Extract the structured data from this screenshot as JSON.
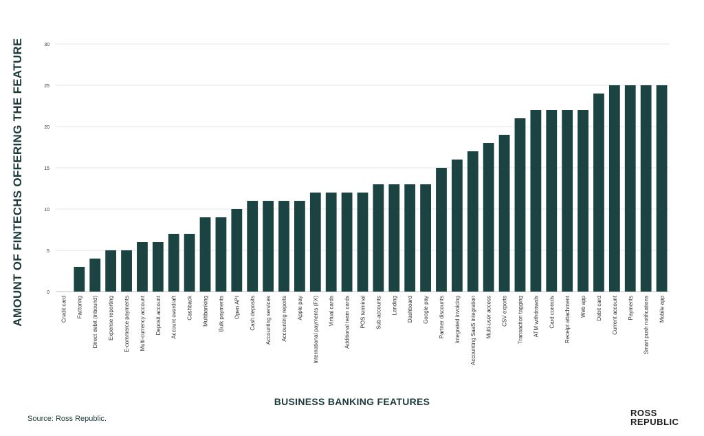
{
  "chart_data": {
    "type": "bar",
    "xlabel": "BUSINESS BANKING FEATURES",
    "ylabel": "AMOUNT OF FINTECHS OFFERING THE FEATURE",
    "ylim": [
      0,
      30
    ],
    "yticks": [
      0,
      5,
      10,
      15,
      20,
      25,
      30
    ],
    "grid": true,
    "bar_color": "#1b4341",
    "categories": [
      "Credit card",
      "Factoring",
      "Direct debit (inbound)",
      "Expense reporting",
      "E-commerce payments",
      "Multi-currency account",
      "Deposit account",
      "Account overdraft",
      "Cashback",
      "Multibanking",
      "Bulk payments",
      "Open API",
      "Cash deposits",
      "Accounting services",
      "Accounting reports",
      "Apple pay",
      "International payments (FX)",
      "Virtual cards",
      "Additional team cards",
      "POS terminal",
      "Sub-accounts",
      "Lending",
      "Dashboard",
      "Google pay",
      "Partner discounts",
      "Integrated invoicing",
      "Accounting SaaS integration",
      "Multi-user access",
      "CSV exports",
      "Transaction tagging",
      "ATM withdrawals",
      "Card controls",
      "Receipt attachment",
      "Web app",
      "Debit card",
      "Current account",
      "Payments",
      "Smart push notifications",
      "Mobile app"
    ],
    "values": [
      0,
      3,
      4,
      5,
      5,
      6,
      6,
      7,
      7,
      9,
      9,
      10,
      11,
      11,
      11,
      11,
      12,
      12,
      12,
      12,
      13,
      13,
      13,
      13,
      15,
      16,
      17,
      18,
      19,
      21,
      22,
      22,
      22,
      22,
      24,
      25,
      25,
      25,
      25
    ]
  },
  "footer": {
    "source": "Source: Ross Republic.",
    "logo_line1": "ROSS",
    "logo_line2": "REPUBLIC"
  }
}
